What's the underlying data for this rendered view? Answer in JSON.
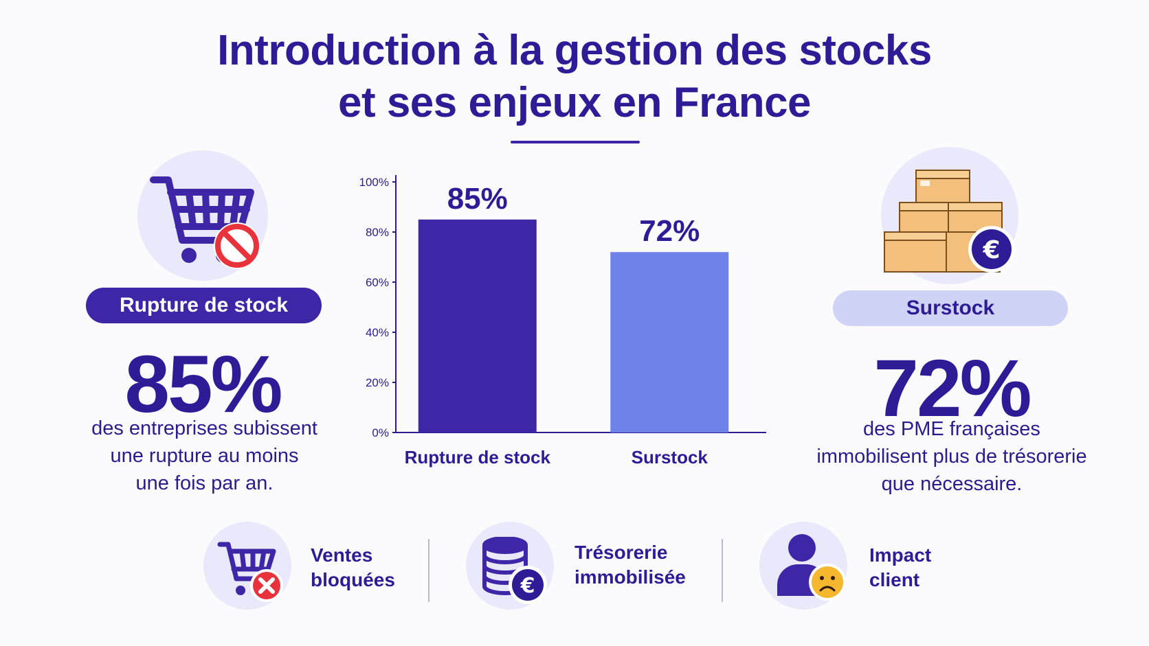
{
  "title_line1": "Introduction à la gestion des stocks",
  "title_line2": "et ses enjeux en France",
  "left_panel": {
    "pill": "Rupture de stock",
    "stat": "85%",
    "desc_lines": [
      "des entreprises subissent",
      "une rupture au moins",
      "une fois par an."
    ],
    "icon": "shopping-cart-prohibited-icon"
  },
  "right_panel": {
    "pill": "Surstock",
    "stat": "72%",
    "desc_lines": [
      "des PME françaises",
      "immobilisent plus de trésorerie",
      "que nécessaire."
    ],
    "icon": "boxes-euro-icon"
  },
  "chart_data": {
    "type": "bar",
    "categories": [
      "Rupture de stock",
      "Surstock"
    ],
    "values": [
      85,
      72
    ],
    "data_labels": [
      "85%",
      "72%"
    ],
    "yticks": [
      "0%",
      "20%",
      "40%",
      "60%",
      "80%",
      "100%"
    ],
    "ylim": [
      0,
      100
    ],
    "colors": [
      "#3f26a6",
      "#6f82ea"
    ],
    "grid": false
  },
  "bottom_items": [
    {
      "line1": "Ventes",
      "line2": "bloquées",
      "icon": "cart-blocked-icon"
    },
    {
      "line1": "Trésorerie",
      "line2": "immobilisée",
      "icon": "coins-euro-icon"
    },
    {
      "line1": "Impact",
      "line2": "client",
      "icon": "user-sad-icon"
    }
  ],
  "colors": {
    "primary": "#2e1c96",
    "accent": "#3f26a6",
    "accent_light": "#6f82ea",
    "circle_bg": "#e9e9fb",
    "red": "#e8323c",
    "box": "#f2c07c",
    "sad": "#f5b72e"
  }
}
